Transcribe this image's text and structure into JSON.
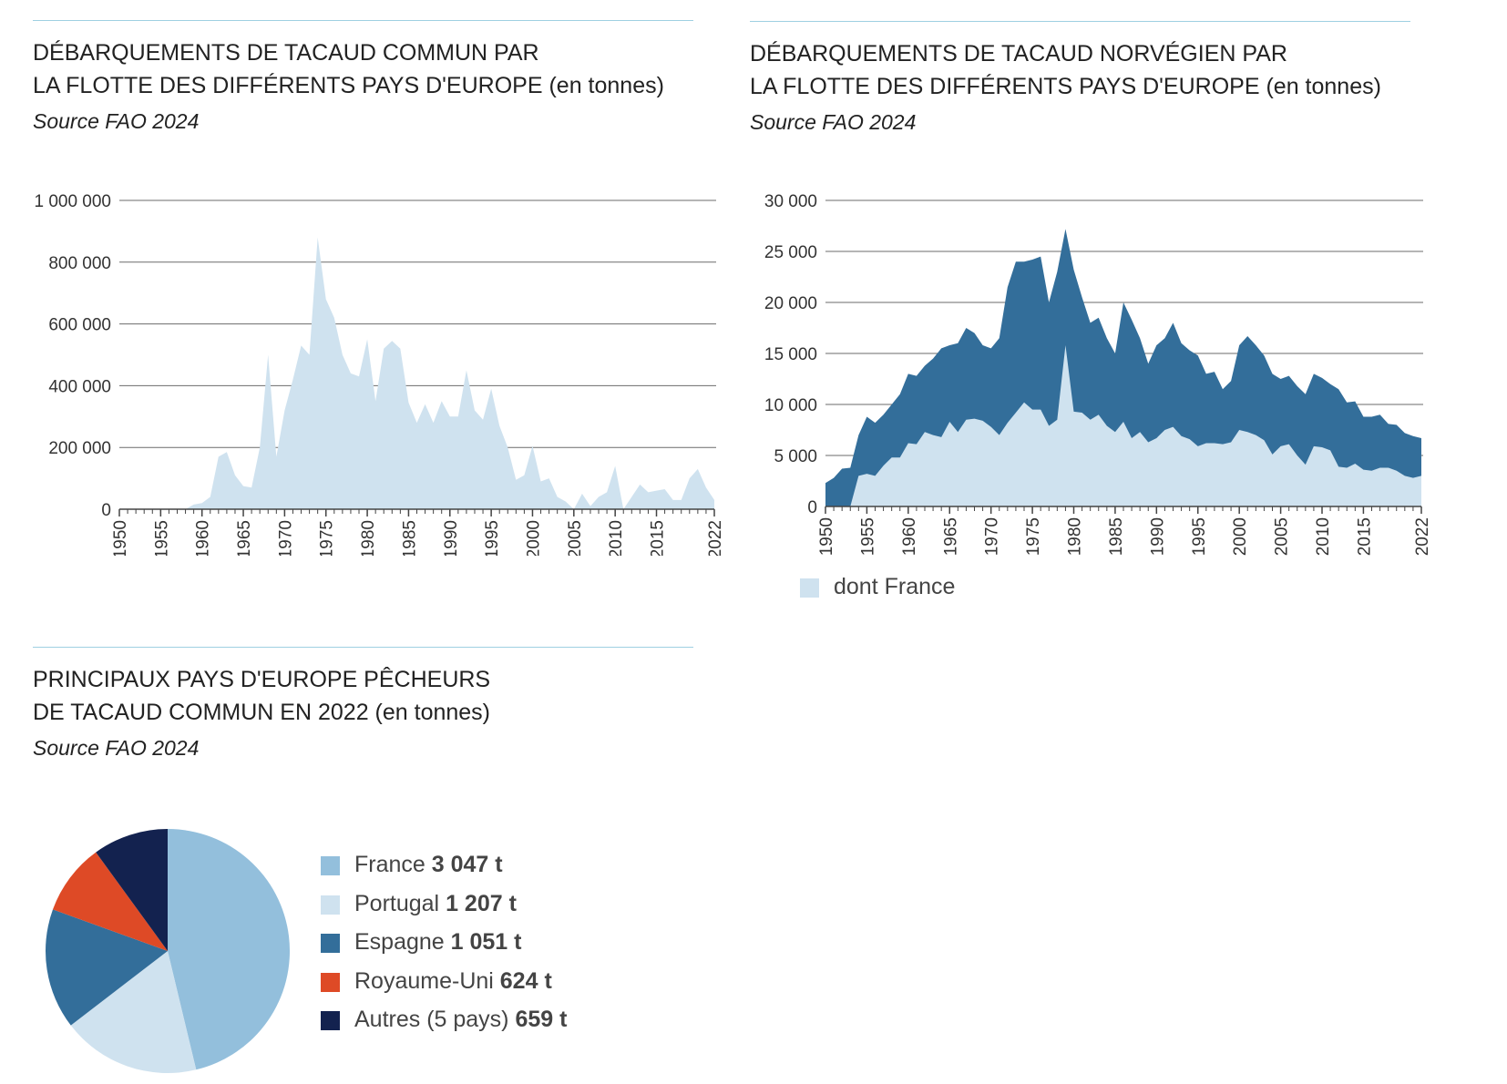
{
  "chart_data": [
    {
      "type": "area",
      "title": "DÉBARQUEMENTS DE TACAUD COMMUN PAR LA FLOTTE DES DIFFÉRENTS PAYS D'EUROPE",
      "title_lines": [
        "DÉBARQUEMENTS DE TACAUD COMMUN PAR",
        "LA FLOTTE DES DIFFÉRENTS PAYS D'EUROPE"
      ],
      "subtitle": "(en tonnes)",
      "source": "Source FAO 2024",
      "ylim": [
        0,
        1000000
      ],
      "yticks": [
        0,
        200000,
        400000,
        600000,
        800000,
        1000000
      ],
      "ytick_labels": [
        "0",
        "200 000",
        "400 000",
        "600 000",
        "800 000",
        "1 000 000"
      ],
      "xlim": [
        1950,
        2022
      ],
      "xticks": [
        1950,
        1955,
        1960,
        1965,
        1970,
        1975,
        1980,
        1985,
        1990,
        1995,
        2000,
        2005,
        2010,
        2015,
        2022
      ],
      "grid": true,
      "color": "#cfe2ef",
      "x": [
        1950,
        1951,
        1952,
        1953,
        1954,
        1955,
        1956,
        1957,
        1958,
        1959,
        1960,
        1961,
        1962,
        1963,
        1964,
        1965,
        1966,
        1967,
        1968,
        1969,
        1970,
        1971,
        1972,
        1973,
        1974,
        1975,
        1976,
        1977,
        1978,
        1979,
        1980,
        1981,
        1982,
        1983,
        1984,
        1985,
        1986,
        1987,
        1988,
        1989,
        1990,
        1991,
        1992,
        1993,
        1994,
        1995,
        1996,
        1997,
        1998,
        1999,
        2000,
        2001,
        2002,
        2003,
        2004,
        2005,
        2006,
        2007,
        2008,
        2009,
        2010,
        2011,
        2012,
        2013,
        2014,
        2015,
        2016,
        2017,
        2018,
        2019,
        2020,
        2021,
        2022
      ],
      "values": [
        0,
        0,
        0,
        0,
        0,
        0,
        0,
        0,
        0,
        15000,
        20000,
        40000,
        170000,
        185000,
        110000,
        75000,
        70000,
        200000,
        500000,
        170000,
        320000,
        420000,
        530000,
        500000,
        880000,
        680000,
        620000,
        500000,
        440000,
        430000,
        550000,
        350000,
        520000,
        545000,
        520000,
        345000,
        280000,
        340000,
        280000,
        350000,
        300000,
        300000,
        450000,
        320000,
        290000,
        390000,
        270000,
        200000,
        95000,
        110000,
        205000,
        90000,
        100000,
        40000,
        25000,
        0,
        50000,
        10000,
        40000,
        55000,
        140000,
        0,
        40000,
        80000,
        55000,
        60000,
        65000,
        30000,
        30000,
        100000,
        130000,
        70000,
        30000
      ]
    },
    {
      "type": "area",
      "title": "DÉBARQUEMENTS DE TACAUD NORVÉGIEN PAR LA FLOTTE DES DIFFÉRENTS PAYS D'EUROPE",
      "title_lines": [
        "DÉBARQUEMENTS DE TACAUD NORVÉGIEN PAR",
        "LA FLOTTE DES DIFFÉRENTS PAYS D'EUROPE"
      ],
      "subtitle": "(en tonnes)",
      "source": "Source FAO 2024",
      "ylim": [
        0,
        30000
      ],
      "yticks": [
        0,
        5000,
        10000,
        15000,
        20000,
        25000,
        30000
      ],
      "ytick_labels": [
        "0",
        "5 000",
        "10 000",
        "15 000",
        "20 000",
        "25 000",
        "30 000"
      ],
      "xlim": [
        1950,
        2022
      ],
      "xticks": [
        1950,
        1955,
        1960,
        1965,
        1970,
        1975,
        1980,
        1985,
        1990,
        1995,
        2000,
        2005,
        2010,
        2015,
        2022
      ],
      "grid": true,
      "legend_entries": [
        "dont France"
      ],
      "legend_position": "bottom-left",
      "x": [
        1950,
        1951,
        1952,
        1953,
        1954,
        1955,
        1956,
        1957,
        1958,
        1959,
        1960,
        1961,
        1962,
        1963,
        1964,
        1965,
        1966,
        1967,
        1968,
        1969,
        1970,
        1971,
        1972,
        1973,
        1974,
        1975,
        1976,
        1977,
        1978,
        1979,
        1980,
        1981,
        1982,
        1983,
        1984,
        1985,
        1986,
        1987,
        1988,
        1989,
        1990,
        1991,
        1992,
        1993,
        1994,
        1995,
        1996,
        1997,
        1998,
        1999,
        2000,
        2001,
        2002,
        2003,
        2004,
        2005,
        2006,
        2007,
        2008,
        2009,
        2010,
        2011,
        2012,
        2013,
        2014,
        2015,
        2016,
        2017,
        2018,
        2019,
        2020,
        2021,
        2022
      ],
      "series": [
        {
          "name": "",
          "color": "#336e9a",
          "values": [
            2300,
            2800,
            3700,
            3800,
            7000,
            8800,
            8200,
            9000,
            10000,
            11000,
            13000,
            12800,
            13800,
            14500,
            15500,
            15800,
            16000,
            17500,
            17000,
            15800,
            15500,
            16500,
            21500,
            24000,
            24000,
            24200,
            24500,
            20000,
            23000,
            27200,
            23200,
            20500,
            18000,
            18500,
            16500,
            15000,
            20000,
            18300,
            16500,
            14000,
            15800,
            16500,
            18000,
            16000,
            15300,
            14800,
            13000,
            13200,
            11500,
            12300,
            15800,
            16700,
            15800,
            14800,
            13000,
            12500,
            12800,
            11800,
            11000,
            13000,
            12600,
            12000,
            11500,
            10200,
            10300,
            8800,
            8800,
            9000,
            8100,
            8000,
            7200,
            6900,
            6700
          ]
        },
        {
          "name": "dont France",
          "color": "#cfe2ef",
          "values": [
            0,
            0,
            0,
            0,
            3000,
            3200,
            3000,
            4000,
            4800,
            4800,
            6200,
            6100,
            7300,
            7000,
            6800,
            8300,
            7300,
            8500,
            8600,
            8400,
            7800,
            7000,
            8200,
            9200,
            10200,
            9500,
            9500,
            7900,
            8500,
            15800,
            9300,
            9200,
            8500,
            9000,
            7900,
            7300,
            8300,
            6700,
            7300,
            6300,
            6700,
            7500,
            7800,
            6900,
            6600,
            5900,
            6200,
            6200,
            6100,
            6300,
            7500,
            7300,
            7000,
            6500,
            5100,
            5900,
            6100,
            5000,
            4100,
            5900,
            5800,
            5500,
            3900,
            3800,
            4200,
            3600,
            3500,
            3800,
            3800,
            3500,
            3000,
            2800,
            3000
          ]
        }
      ]
    },
    {
      "type": "pie",
      "title": "PRINCIPAUX PAYS D'EUROPE PÊCHEURS DE TACAUD COMMUN EN 2022",
      "title_lines": [
        "PRINCIPAUX PAYS D'EUROPE PÊCHEURS",
        "DE TACAUD COMMUN EN 2022"
      ],
      "subtitle": "(en tonnes)",
      "source": "Source FAO 2024",
      "legend_position": "right",
      "slices": [
        {
          "label": "France",
          "value": 3047,
          "value_label": "3 047 t",
          "color": "#93bfdc"
        },
        {
          "label": "Portugal",
          "value": 1207,
          "value_label": "1 207 t",
          "color": "#cfe2ef"
        },
        {
          "label": "Espagne",
          "value": 1051,
          "value_label": "1 051 t",
          "color": "#336e9a"
        },
        {
          "label": "Royaume-Uni",
          "value": 624,
          "value_label": "624 t",
          "color": "#de4a26"
        },
        {
          "label": "Autres (5 pays)",
          "value": 659,
          "value_label": "659 t",
          "color": "#13224f"
        }
      ]
    }
  ]
}
